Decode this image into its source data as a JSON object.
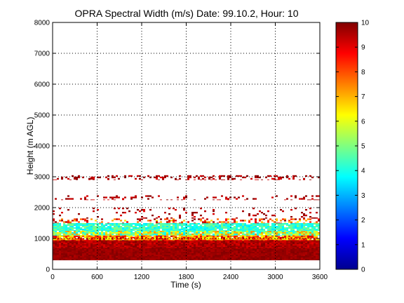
{
  "chart_data": {
    "type": "heatmap",
    "title": "OPRA Spectral Width (m/s)  Date: 99.10.2, Hour: 10",
    "xlabel": "Time (s)",
    "ylabel": "Height (m AGL)",
    "xlim": [
      0,
      3600
    ],
    "ylim": [
      0,
      8000
    ],
    "x_ticks": [
      0,
      600,
      1200,
      1800,
      2400,
      3000,
      3600
    ],
    "y_ticks": [
      0,
      1000,
      2000,
      3000,
      4000,
      5000,
      6000,
      7000,
      8000
    ],
    "grid": true,
    "colorbar": {
      "range": [
        0,
        10
      ],
      "ticks": [
        0,
        1,
        2,
        3,
        4,
        5,
        6,
        7,
        8,
        9,
        10
      ],
      "colormap": "jet"
    },
    "height_bands": [
      {
        "bottom_m": 300,
        "top_m": 700,
        "width_min": 9.5,
        "width_max": 10,
        "fill": 1.0
      },
      {
        "bottom_m": 700,
        "top_m": 950,
        "width_min": 9.0,
        "width_max": 10,
        "fill": 1.0
      },
      {
        "bottom_m": 950,
        "top_m": 1100,
        "width_min": 6.0,
        "width_max": 9.5,
        "fill": 0.95
      },
      {
        "bottom_m": 1100,
        "top_m": 1250,
        "width_min": 3.5,
        "width_max": 7.5,
        "fill": 0.95
      },
      {
        "bottom_m": 1250,
        "top_m": 1500,
        "width_min": 3.5,
        "width_max": 5.0,
        "fill": 0.9
      },
      {
        "bottom_m": 1500,
        "top_m": 1650,
        "width_min": 6.5,
        "width_max": 10,
        "fill": 0.35
      },
      {
        "bottom_m": 1650,
        "top_m": 2000,
        "width_min": 9.0,
        "width_max": 10,
        "fill": 0.08
      },
      {
        "bottom_m": 2250,
        "top_m": 2400,
        "width_min": 9.0,
        "width_max": 10,
        "fill": 0.18
      },
      {
        "bottom_m": 2900,
        "top_m": 3050,
        "width_min": 9.0,
        "width_max": 10,
        "fill": 0.3
      }
    ],
    "time_span_s": [
      0,
      3600
    ]
  }
}
